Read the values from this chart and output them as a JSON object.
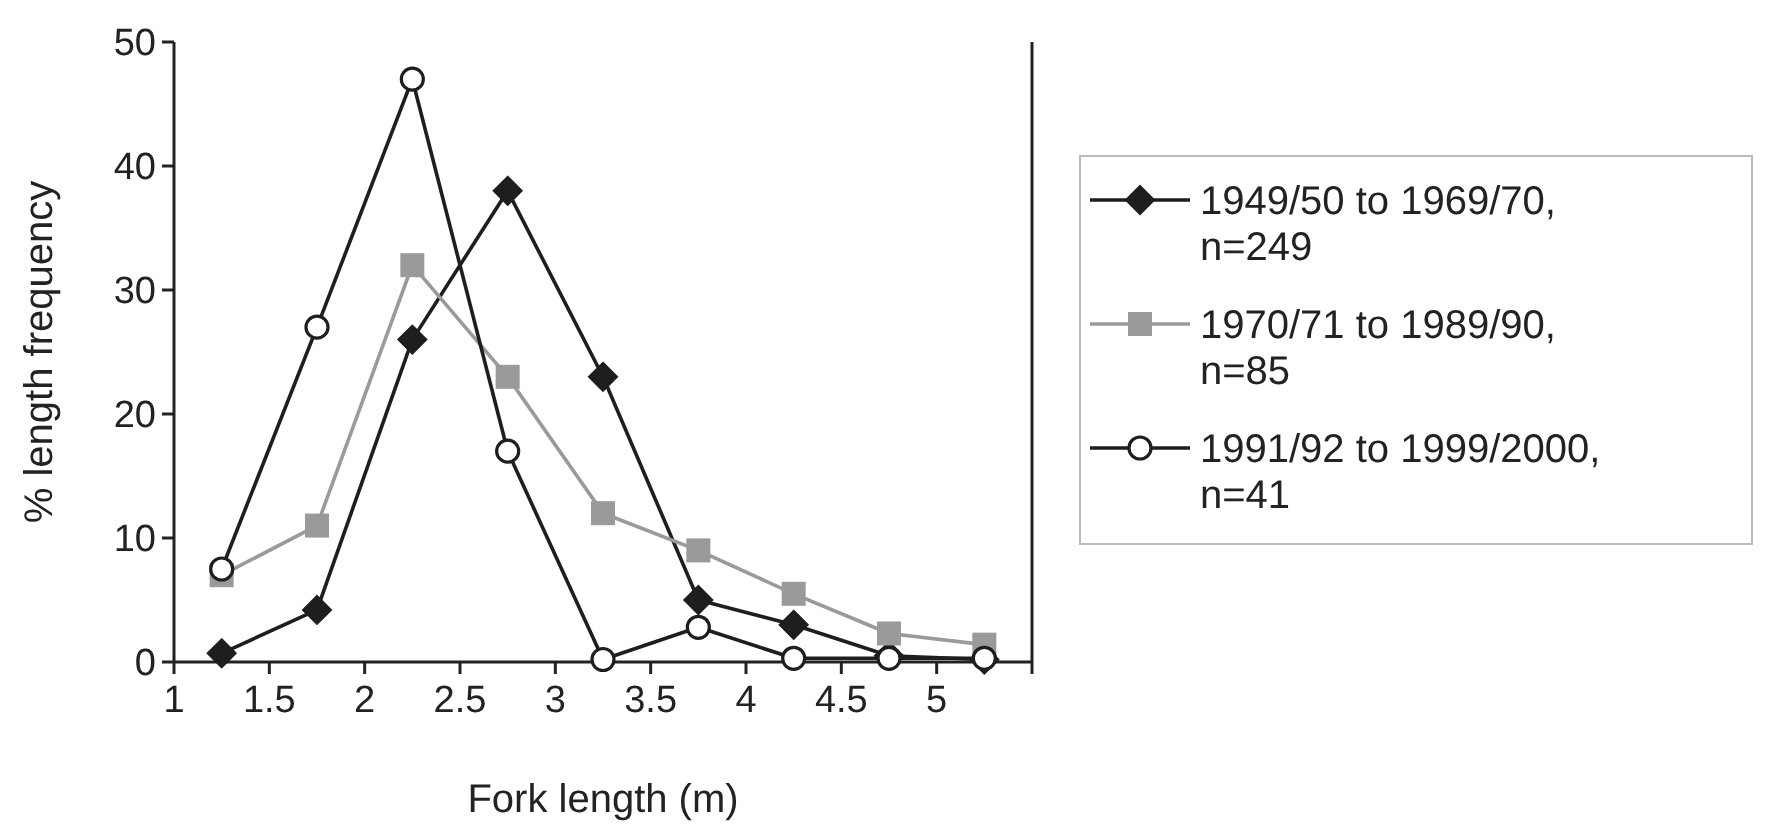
{
  "chart_data": {
    "type": "line",
    "xlabel": "Fork length (m)",
    "ylabel": "% length frequency",
    "x": [
      1.25,
      1.75,
      2.25,
      2.75,
      3.25,
      3.75,
      4.25,
      4.75,
      5.25
    ],
    "series": [
      {
        "name": "1949/50 to 1969/70, n=249",
        "color": "#1e1e1e",
        "marker": "diamond",
        "values": [
          0.7,
          4.2,
          26,
          38,
          23,
          5,
          3,
          0.5,
          0.2
        ]
      },
      {
        "name": "1970/71 to 1989/90, n=85",
        "color": "#9a9a9a",
        "marker": "square",
        "values": [
          7,
          11,
          32,
          23,
          12,
          9,
          5.5,
          2.3,
          1.4
        ]
      },
      {
        "name": "1991/92 to 1999/2000, n=41",
        "color": "#1e1e1e",
        "marker": "circle",
        "values": [
          7.5,
          27,
          47,
          17,
          0.2,
          2.8,
          0.3,
          0.3,
          0.3
        ]
      }
    ],
    "xlim": [
      1,
      5.5
    ],
    "xticks": [
      1,
      1.5,
      2,
      2.5,
      3,
      3.5,
      4,
      4.5,
      5,
      {
        "value": 5.5,
        "label": null
      }
    ],
    "ylim": [
      0,
      50
    ],
    "yticks": [
      0,
      10,
      20,
      30,
      40,
      50
    ],
    "legend": "right",
    "grid": false
  }
}
